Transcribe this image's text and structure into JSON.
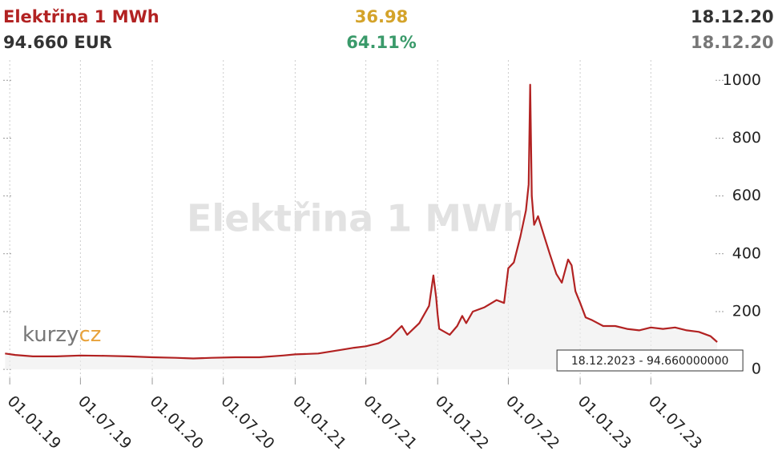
{
  "chart_data": {
    "type": "line",
    "title": "Elektřina 1 MWh",
    "price": "94.660 EUR",
    "change": "36.98",
    "change_percent": "64.11%",
    "date_top": "18.12.20",
    "date_bottom": "18.12.20",
    "logo": [
      "kurzy",
      "cz"
    ],
    "annotation": "18.12.2023 - 94.660000000",
    "color": "#b22222",
    "x": [
      "2018-12-20",
      "2019-01-15",
      "2019-03-01",
      "2019-05-01",
      "2019-07-01",
      "2019-09-01",
      "2019-11-01",
      "2020-01-01",
      "2020-03-01",
      "2020-04-15",
      "2020-06-01",
      "2020-08-01",
      "2020-10-01",
      "2020-12-01",
      "2021-01-01",
      "2021-03-01",
      "2021-05-01",
      "2021-06-01",
      "2021-07-01",
      "2021-08-01",
      "2021-09-01",
      "2021-10-01",
      "2021-10-15",
      "2021-11-15",
      "2021-12-10",
      "2021-12-21",
      "2021-12-28",
      "2022-01-01",
      "2022-01-05",
      "2022-02-01",
      "2022-02-20",
      "2022-03-05",
      "2022-03-15",
      "2022-04-01",
      "2022-05-01",
      "2022-06-01",
      "2022-06-20",
      "2022-07-01",
      "2022-07-15",
      "2022-08-01",
      "2022-08-15",
      "2022-08-22",
      "2022-08-26",
      "2022-08-30",
      "2022-09-05",
      "2022-09-15",
      "2022-10-01",
      "2022-10-15",
      "2022-11-01",
      "2022-11-15",
      "2022-12-01",
      "2022-12-10",
      "2022-12-20",
      "2023-01-01",
      "2023-01-15",
      "2023-02-01",
      "2023-03-01",
      "2023-04-01",
      "2023-05-01",
      "2023-06-01",
      "2023-07-01",
      "2023-08-01",
      "2023-09-01",
      "2023-10-01",
      "2023-11-01",
      "2023-12-01",
      "2023-12-18"
    ],
    "values": [
      55,
      50,
      45,
      45,
      48,
      47,
      45,
      42,
      40,
      38,
      40,
      42,
      42,
      48,
      52,
      55,
      68,
      75,
      80,
      90,
      110,
      150,
      120,
      160,
      220,
      325,
      250,
      190,
      140,
      120,
      150,
      185,
      160,
      200,
      215,
      240,
      230,
      350,
      370,
      460,
      550,
      640,
      985,
      600,
      500,
      530,
      460,
      400,
      330,
      300,
      380,
      360,
      270,
      230,
      180,
      170,
      150,
      150,
      140,
      135,
      145,
      140,
      145,
      135,
      130,
      115,
      94.66
    ],
    "xlim": [
      "2018-12-07",
      "2023-12-28"
    ],
    "xticks": [
      {
        "value": "2019-01-01",
        "label": "01.01.19"
      },
      {
        "value": "2019-07-01",
        "label": "01.07.19"
      },
      {
        "value": "2020-01-01",
        "label": "01.01.20"
      },
      {
        "value": "2020-07-01",
        "label": "01.07.20"
      },
      {
        "value": "2021-01-01",
        "label": "01.01.21"
      },
      {
        "value": "2021-07-01",
        "label": "01.07.21"
      },
      {
        "value": "2022-01-01",
        "label": "01.01.22"
      },
      {
        "value": "2022-07-01",
        "label": "01.07.22"
      },
      {
        "value": "2023-01-01",
        "label": "01.01.23"
      },
      {
        "value": "2023-07-01",
        "label": "01.07.23"
      }
    ],
    "ylim": [
      -30,
      1070
    ],
    "yticks": [
      0,
      200,
      400,
      600,
      800,
      1000
    ],
    "grid": true
  }
}
